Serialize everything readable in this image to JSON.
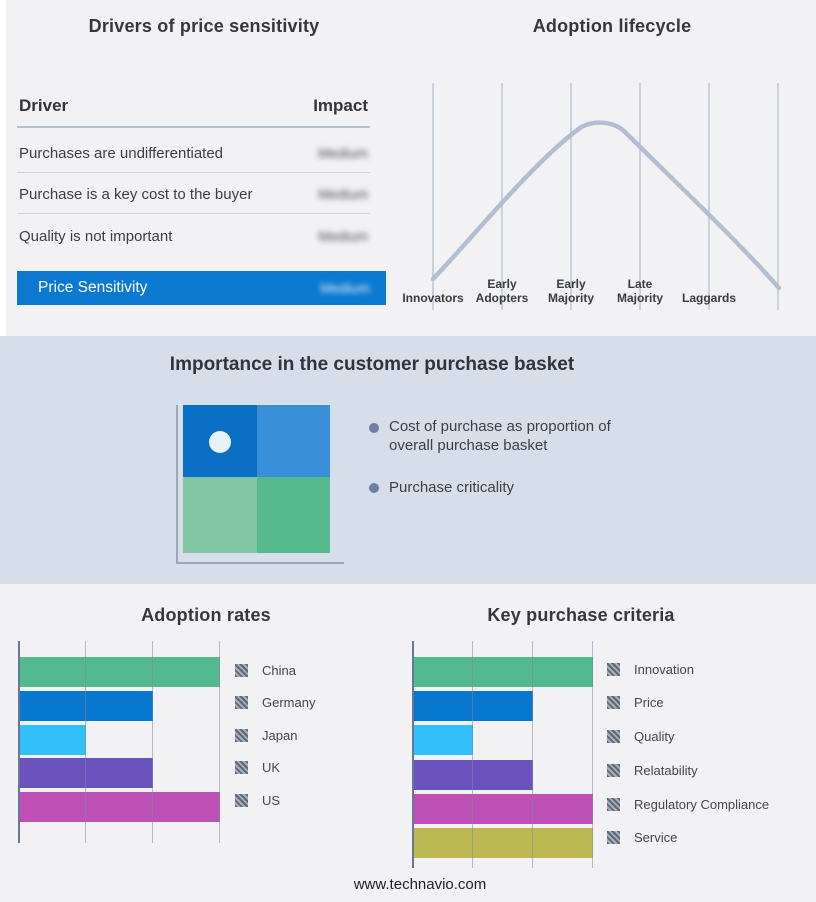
{
  "drivers_panel": {
    "title": "Drivers of price sensitivity",
    "col_driver": "Driver",
    "col_impact": "Impact",
    "rows": [
      {
        "driver": "Purchases are undifferentiated",
        "impact": "Medium",
        "impact_obscured": true
      },
      {
        "driver": "Purchase is a key cost to the buyer",
        "impact": "Medium",
        "impact_obscured": true
      },
      {
        "driver": "Quality is not important",
        "impact": "Medium",
        "impact_obscured": true
      }
    ],
    "highlight_row": {
      "driver": "Price Sensitivity",
      "impact": "Medium",
      "impact_obscured": true,
      "bg_color": "#0b79d0"
    }
  },
  "basket": {
    "title": "Importance in the customer purchase basket",
    "bullets": [
      "Cost of purchase as proportion of overall purchase basket",
      "Purchase criticality"
    ],
    "bullet_color": "#6e7f9f",
    "quadrant_colors": {
      "top_left": "#0b6ec5",
      "top_right": "#3990d9",
      "bottom_left": "#80c5a4",
      "bottom_right": "#55bb8d"
    },
    "marker": "white-dot-in-top-left-quadrant",
    "band_bg": "#d5dee9"
  },
  "chart_data": [
    {
      "type": "line",
      "title": "Adoption lifecycle",
      "categories": [
        "Innovators",
        "Early Adopters",
        "Early Majority",
        "Late Majority",
        "Laggards"
      ],
      "values_relative_height": [
        0.1,
        0.55,
        1.0,
        0.55,
        0.1
      ],
      "shape": "bell-curve",
      "curve_color": "#b2bfd2",
      "gridline_color": "#b9c3d2",
      "legend_position": "none",
      "axis_labels": "bottom"
    },
    {
      "type": "bar",
      "orientation": "horizontal",
      "title": "Adoption rates",
      "categories": [
        "China",
        "Germany",
        "Japan",
        "UK",
        "US"
      ],
      "values": [
        3,
        2,
        1,
        2,
        3
      ],
      "colors": [
        "#52ba8e",
        "#0677cd",
        "#32bffa",
        "#6a53bd",
        "#bd50b5"
      ],
      "xlim": [
        0,
        3
      ],
      "gridlines": [
        1,
        2,
        3
      ],
      "grid_on": true,
      "legend_position": "right",
      "legend_swatch_style": "hatched-gray"
    },
    {
      "type": "bar",
      "orientation": "horizontal",
      "title": "Key purchase criteria",
      "categories": [
        "Innovation",
        "Price",
        "Quality",
        "Relatability",
        "Regulatory Compliance",
        "Service"
      ],
      "values": [
        3,
        2,
        1,
        2,
        3,
        3
      ],
      "colors": [
        "#52ba8e",
        "#0677cd",
        "#32bffa",
        "#6a53bd",
        "#bd50b5",
        "#bdb952"
      ],
      "xlim": [
        0,
        3
      ],
      "gridlines": [
        1,
        2,
        3
      ],
      "grid_on": true,
      "legend_position": "right",
      "legend_swatch_style": "hatched-gray"
    }
  ],
  "footer": "www.technavio.com"
}
